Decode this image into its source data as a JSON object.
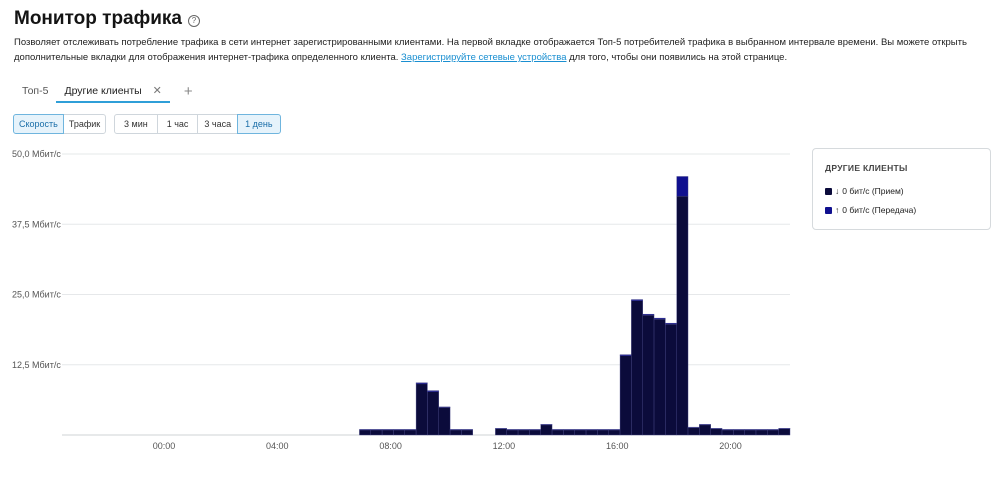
{
  "page": {
    "title": "Монитор трафика",
    "help_icon": "question-circle-icon",
    "description_part1": "Позволяет отслеживать потребление трафика в сети интернет зарегистрированными клиентами. На первой вкладке отображается Топ-5 потребителей трафика в выбранном интервале времени. Вы можете открыть дополнительные вкладки для отображения интернет-трафика определенного клиента.",
    "description_link": "Зарегистрируйте сетевые устройства",
    "description_part2": "для того, чтобы они появились на этой странице."
  },
  "tabs": [
    {
      "label": "Топ-5",
      "active": false
    },
    {
      "label": "Другие клиенты",
      "active": true
    }
  ],
  "tab_close_icon": "close-icon",
  "tab_add_icon": "plus-icon",
  "metric_toggle": [
    {
      "label": "Скорость",
      "active": true
    },
    {
      "label": "Трафик",
      "active": false
    }
  ],
  "interval_toggle": [
    {
      "label": "3 мин",
      "active": false
    },
    {
      "label": "1 час",
      "active": false
    },
    {
      "label": "3 часа",
      "active": false
    },
    {
      "label": "1 день",
      "active": true
    }
  ],
  "legend": {
    "title": "ДРУГИЕ КЛИЕНТЫ",
    "items": [
      {
        "arrow": "↓",
        "label": "0 бит/с (Прием)",
        "color": "#0b0b3b"
      },
      {
        "arrow": "↑",
        "label": "0 бит/с (Передача)",
        "color": "#10108f"
      }
    ]
  },
  "chart_data": {
    "type": "bar",
    "stacked": true,
    "y_tick_labels": [
      "50,0 Мбит/с",
      "37,5 Мбит/с",
      "25,0 Мбит/с",
      "12,5 Мбит/с"
    ],
    "y_tick_values": [
      50,
      37.5,
      25,
      12.5
    ],
    "ylim": [
      0,
      50
    ],
    "x_tick_labels": [
      "00:00",
      "04:00",
      "08:00",
      "12:00",
      "16:00",
      "20:00"
    ],
    "x_tick_hours": [
      0,
      4,
      8,
      12,
      16,
      20
    ],
    "xlim_hours": [
      -3.6,
      22.1
    ],
    "bar_start_hours": [
      6.9,
      7.3,
      7.7,
      8.1,
      8.5,
      8.9,
      9.3,
      9.7,
      10.1,
      10.5,
      11.7,
      12.1,
      12.5,
      12.9,
      13.3,
      13.7,
      14.1,
      14.5,
      14.9,
      15.3,
      15.7,
      16.1,
      16.5,
      16.9,
      17.3,
      17.7,
      18.1,
      18.5,
      18.9,
      19.3,
      19.7,
      20.1,
      20.5,
      20.9,
      21.3,
      21.7
    ],
    "bar_width_hours": 0.4,
    "series": [
      {
        "name": "Прием",
        "color": "#0b0b3b",
        "values": [
          0.9,
          0.9,
          0.9,
          0.9,
          0.9,
          9.1,
          7.7,
          4.9,
          0.9,
          0.9,
          1.1,
          0.9,
          0.9,
          0.9,
          1.8,
          0.9,
          0.9,
          0.9,
          0.9,
          0.9,
          0.9,
          14.1,
          23.9,
          21.3,
          20.6,
          19.7,
          42.5,
          1.3,
          1.8,
          1.1,
          0.9,
          0.9,
          0.9,
          0.9,
          0.9,
          1.1
        ]
      },
      {
        "name": "Передача",
        "color": "#10108f",
        "values": [
          0.1,
          0.1,
          0.1,
          0.1,
          0.1,
          0.2,
          0.2,
          0.1,
          0.1,
          0.1,
          0.1,
          0.1,
          0.1,
          0.1,
          0.1,
          0.1,
          0.1,
          0.1,
          0.1,
          0.1,
          0.1,
          0.2,
          0.2,
          0.2,
          0.2,
          0.2,
          3.5,
          0.1,
          0.1,
          0.1,
          0.1,
          0.1,
          0.1,
          0.1,
          0.1,
          0.1
        ]
      }
    ],
    "grid": true
  }
}
